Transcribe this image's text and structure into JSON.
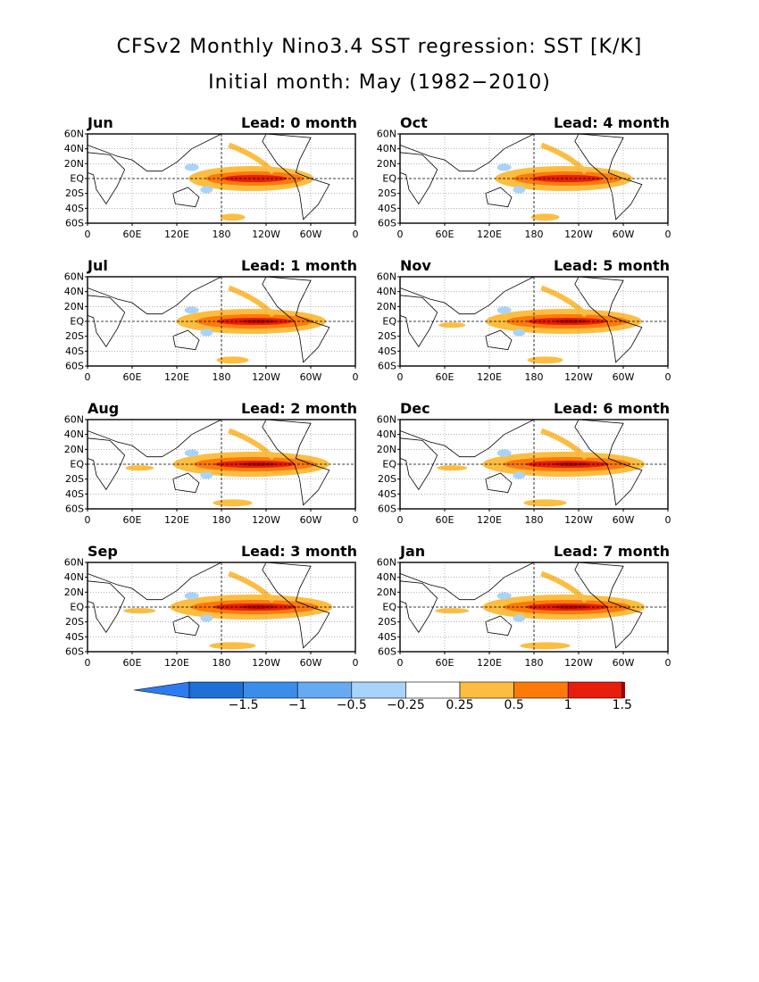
{
  "title_line1": "CFSv2 Monthly Nino3.4 SST regression: SST [K/K]",
  "title_line2": "Initial month: May (1982−2010)",
  "lat_labels": [
    "60N",
    "40N",
    "20N",
    "EQ",
    "20S",
    "40S",
    "60S"
  ],
  "lon_labels": [
    "0",
    "60E",
    "120E",
    "180",
    "120W",
    "60W",
    "0"
  ],
  "panels": [
    {
      "month": "Jun",
      "lead": "Lead: 0 month"
    },
    {
      "month": "Oct",
      "lead": "Lead: 4 month"
    },
    {
      "month": "Jul",
      "lead": "Lead: 1 month"
    },
    {
      "month": "Nov",
      "lead": "Lead: 5 month"
    },
    {
      "month": "Aug",
      "lead": "Lead: 2 month"
    },
    {
      "month": "Dec",
      "lead": "Lead: 6 month"
    },
    {
      "month": "Sep",
      "lead": "Lead: 3 month"
    },
    {
      "month": "Jan",
      "lead": "Lead: 7 month"
    }
  ],
  "colorbar": {
    "labels": [
      "−1.5",
      "−1",
      "−0.5",
      "−0.25",
      "0.25",
      "0.5",
      "1",
      "1.5"
    ],
    "colors": [
      "#1e6fd6",
      "#3a8eea",
      "#66aaf2",
      "#a8d4fb",
      "#ffffff",
      "#fdbd40",
      "#fd7a0a",
      "#e61e0a",
      "#b00808"
    ],
    "low_arrow_color": "#2d7bf0",
    "high_arrow_color": "#a30505"
  }
}
